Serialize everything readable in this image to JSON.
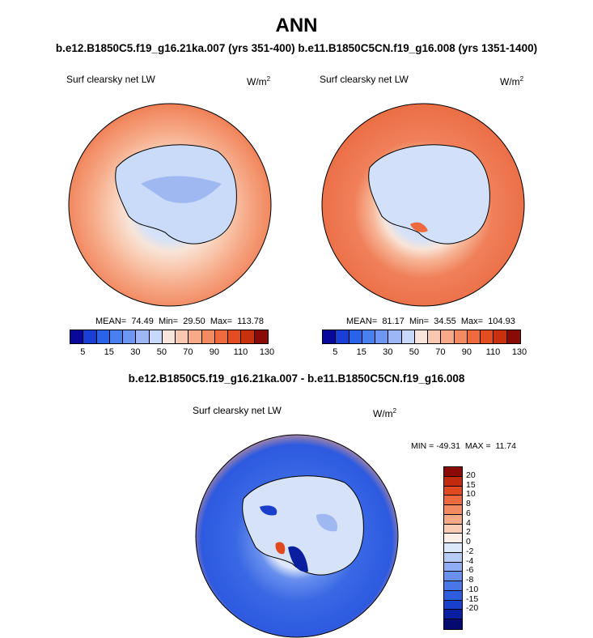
{
  "title": "ANN",
  "subtitle": "b.e12.B1850C5.f19_g16.21ka.007 (yrs 351-400) b.e11.B1850C5CN.f19_g16.008 (yrs 1351-1400)",
  "panel_a": {
    "label": "Surf clearsky net LW",
    "units_base": "W/m",
    "units_exp": "2",
    "stats": "MEAN=  74.49  Min=  29.50  Max=  113.78"
  },
  "panel_b": {
    "label": "Surf clearsky net LW",
    "units_base": "W/m",
    "units_exp": "2",
    "stats": "MEAN=  81.17  Min=  34.55  Max=  104.93"
  },
  "colorbar_top": {
    "colors": [
      "#08089a",
      "#1a3fd6",
      "#2a63e8",
      "#4a7ff0",
      "#6e97f3",
      "#9cb6f6",
      "#c8d8fa",
      "#f8e6dc",
      "#f9c8b0",
      "#f7a988",
      "#f48a62",
      "#ef6a3f",
      "#e44c22",
      "#c9300e",
      "#8a0a05"
    ],
    "labels": [
      "5",
      "15",
      "30",
      "50",
      "70",
      "90",
      "110",
      "130"
    ]
  },
  "diff_title": "b.e12.B1850C5.f19_g16.21ka.007 - b.e11.B1850C5CN.f19_g16.008",
  "panel_c": {
    "label": "Surf clearsky net LW",
    "units_base": "W/m",
    "units_exp": "2",
    "stats": "MIN = -49.31  MAX =  11.74"
  },
  "colorbar_diff": {
    "colors": [
      "#8a0a05",
      "#c12a0c",
      "#e04a1e",
      "#ef6a3f",
      "#f48a62",
      "#f7aa86",
      "#f9cdb4",
      "#fbeee4",
      "#dce8fa",
      "#b6cbf6",
      "#8fadf2",
      "#6990ee",
      "#4a76e8",
      "#2f5ddf",
      "#1a3fcc",
      "#0a1fa0",
      "#050a70"
    ],
    "labels": [
      "20",
      "15",
      "10",
      "8",
      "6",
      "4",
      "2",
      "0",
      "-2",
      "-4",
      "-6",
      "-8",
      "-10",
      "-15",
      "-20"
    ]
  }
}
